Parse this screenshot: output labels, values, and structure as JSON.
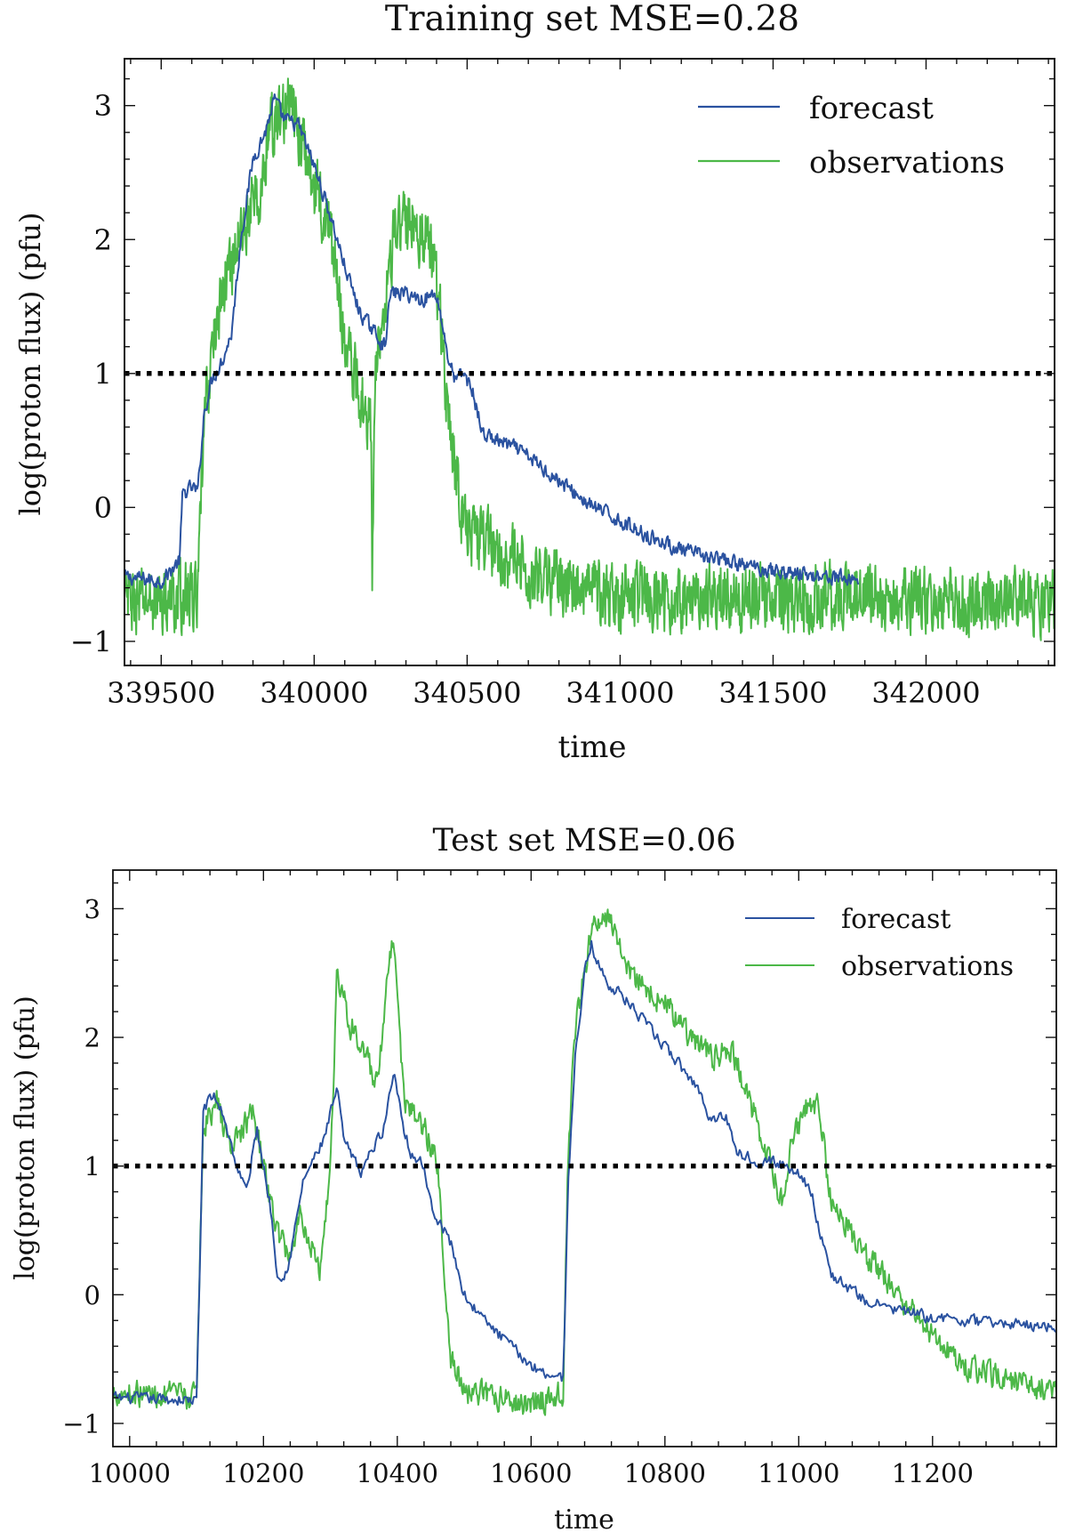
{
  "chart_data": [
    {
      "type": "line",
      "title": "Training set MSE=0.28",
      "xlabel": "time",
      "ylabel": "log(proton flux) (pfu)",
      "xlim": [
        339380,
        342420
      ],
      "ylim": [
        -1.18,
        3.35
      ],
      "xticks": [
        339500,
        340000,
        340500,
        341000,
        341500,
        342000
      ],
      "xtick_labels": [
        "339500",
        "340000",
        "340500",
        "341000",
        "341500",
        "342000"
      ],
      "yticks": [
        -1,
        0,
        1,
        2,
        3
      ],
      "ytick_labels": [
        "−1",
        "0",
        "1",
        "2",
        "3"
      ],
      "grid": false,
      "legend_position": "top-right",
      "threshold": {
        "y": 1,
        "style": "dotted",
        "color": "#000000"
      },
      "series": [
        {
          "name": "forecast",
          "color": "#2a52a0",
          "noise": 0.05,
          "keypoints": [
            [
              339380,
              -0.52
            ],
            [
              339500,
              -0.55
            ],
            [
              339560,
              -0.4
            ],
            [
              339570,
              0.1
            ],
            [
              339600,
              0.15
            ],
            [
              339620,
              0.12
            ],
            [
              339640,
              0.7
            ],
            [
              339665,
              0.95
            ],
            [
              339700,
              1.1
            ],
            [
              339730,
              1.3
            ],
            [
              339760,
              2.0
            ],
            [
              339800,
              2.6
            ],
            [
              339840,
              2.8
            ],
            [
              339870,
              3.05
            ],
            [
              339900,
              2.9
            ],
            [
              339950,
              2.85
            ],
            [
              340000,
              2.55
            ],
            [
              340050,
              2.2
            ],
            [
              340100,
              1.8
            ],
            [
              340150,
              1.45
            ],
            [
              340200,
              1.3
            ],
            [
              340230,
              1.2
            ],
            [
              340250,
              1.6
            ],
            [
              340300,
              1.6
            ],
            [
              340350,
              1.55
            ],
            [
              340400,
              1.6
            ],
            [
              340420,
              1.35
            ],
            [
              340440,
              1.1
            ],
            [
              340460,
              0.95
            ],
            [
              340490,
              1.0
            ],
            [
              340520,
              0.85
            ],
            [
              340550,
              0.55
            ],
            [
              340600,
              0.5
            ],
            [
              340650,
              0.45
            ],
            [
              340700,
              0.38
            ],
            [
              340800,
              0.2
            ],
            [
              340900,
              0.02
            ],
            [
              341000,
              -0.1
            ],
            [
              341100,
              -0.22
            ],
            [
              341200,
              -0.32
            ],
            [
              341300,
              -0.38
            ],
            [
              341400,
              -0.43
            ],
            [
              341500,
              -0.47
            ],
            [
              341600,
              -0.5
            ],
            [
              341700,
              -0.52
            ],
            [
              341780,
              -0.54
            ]
          ]
        },
        {
          "name": "observations",
          "color": "#4cb848",
          "noise": 0.22,
          "keypoints": [
            [
              339380,
              -0.7
            ],
            [
              339500,
              -0.7
            ],
            [
              339620,
              -0.65
            ],
            [
              339640,
              0.6
            ],
            [
              339660,
              1.05
            ],
            [
              339690,
              1.5
            ],
            [
              339730,
              1.85
            ],
            [
              339770,
              2.1
            ],
            [
              339800,
              2.25
            ],
            [
              339830,
              2.35
            ],
            [
              339850,
              2.8
            ],
            [
              339880,
              2.9
            ],
            [
              339920,
              3.0
            ],
            [
              339950,
              2.8
            ],
            [
              340000,
              2.4
            ],
            [
              340050,
              2.1
            ],
            [
              340080,
              1.6
            ],
            [
              340110,
              1.15
            ],
            [
              340150,
              0.85
            ],
            [
              340185,
              0.65
            ],
            [
              340190,
              -0.55
            ],
            [
              340200,
              1.05
            ],
            [
              340230,
              1.6
            ],
            [
              340260,
              2.0
            ],
            [
              340300,
              2.15
            ],
            [
              340340,
              2.1
            ],
            [
              340380,
              1.95
            ],
            [
              340410,
              1.5
            ],
            [
              340430,
              0.9
            ],
            [
              340450,
              0.5
            ],
            [
              340480,
              0.0
            ],
            [
              340520,
              -0.2
            ],
            [
              340600,
              -0.3
            ],
            [
              340700,
              -0.5
            ],
            [
              341000,
              -0.68
            ],
            [
              341500,
              -0.68
            ],
            [
              342000,
              -0.68
            ],
            [
              342420,
              -0.68
            ]
          ]
        }
      ]
    },
    {
      "type": "line",
      "title": "Test set MSE=0.06",
      "xlabel": "time",
      "ylabel": "log(proton flux) (pfu)",
      "xlim": [
        9975,
        11385
      ],
      "ylim": [
        -1.18,
        3.3
      ],
      "xticks": [
        10000,
        10200,
        10400,
        10600,
        10800,
        11000,
        11200
      ],
      "xtick_labels": [
        "10000",
        "10200",
        "10400",
        "10600",
        "10800",
        "11000",
        "11200"
      ],
      "yticks": [
        -1,
        0,
        1,
        2,
        3
      ],
      "ytick_labels": [
        "−1",
        "0",
        "1",
        "2",
        "3"
      ],
      "grid": false,
      "legend_position": "top-right",
      "threshold": {
        "y": 1,
        "style": "dotted",
        "color": "#000000"
      },
      "series": [
        {
          "name": "forecast",
          "color": "#2a52a0",
          "noise": 0.04,
          "keypoints": [
            [
              9975,
              -0.8
            ],
            [
              10100,
              -0.82
            ],
            [
              10105,
              0.2
            ],
            [
              10110,
              1.45
            ],
            [
              10125,
              1.55
            ],
            [
              10140,
              1.4
            ],
            [
              10160,
              1.0
            ],
            [
              10175,
              0.8
            ],
            [
              10190,
              1.3
            ],
            [
              10200,
              1.0
            ],
            [
              10210,
              0.7
            ],
            [
              10220,
              0.2
            ],
            [
              10230,
              0.12
            ],
            [
              10240,
              0.3
            ],
            [
              10260,
              0.9
            ],
            [
              10290,
              1.2
            ],
            [
              10310,
              1.6
            ],
            [
              10320,
              1.2
            ],
            [
              10335,
              1.05
            ],
            [
              10345,
              0.95
            ],
            [
              10360,
              1.1
            ],
            [
              10380,
              1.3
            ],
            [
              10395,
              1.75
            ],
            [
              10410,
              1.3
            ],
            [
              10420,
              1.1
            ],
            [
              10440,
              1.0
            ],
            [
              10450,
              0.7
            ],
            [
              10480,
              0.4
            ],
            [
              10500,
              0.0
            ],
            [
              10530,
              -0.2
            ],
            [
              10560,
              -0.35
            ],
            [
              10600,
              -0.55
            ],
            [
              10620,
              -0.6
            ],
            [
              10648,
              -0.65
            ],
            [
              10655,
              0.8
            ],
            [
              10665,
              1.8
            ],
            [
              10680,
              2.5
            ],
            [
              10690,
              2.72
            ],
            [
              10710,
              2.45
            ],
            [
              10740,
              2.3
            ],
            [
              10780,
              2.05
            ],
            [
              10820,
              1.8
            ],
            [
              10850,
              1.6
            ],
            [
              10870,
              1.35
            ],
            [
              10890,
              1.4
            ],
            [
              10910,
              1.1
            ],
            [
              10935,
              1.05
            ],
            [
              10950,
              1.05
            ],
            [
              10980,
              1.0
            ],
            [
              11000,
              0.95
            ],
            [
              11020,
              0.8
            ],
            [
              11030,
              0.5
            ],
            [
              11050,
              0.15
            ],
            [
              11100,
              -0.05
            ],
            [
              11150,
              -0.12
            ],
            [
              11200,
              -0.18
            ],
            [
              11250,
              -0.2
            ],
            [
              11300,
              -0.22
            ],
            [
              11385,
              -0.25
            ]
          ]
        },
        {
          "name": "observations",
          "color": "#4cb848",
          "noise": 0.09,
          "keypoints": [
            [
              9975,
              -0.75
            ],
            [
              10100,
              -0.8
            ],
            [
              10105,
              0.3
            ],
            [
              10110,
              1.3
            ],
            [
              10130,
              1.5
            ],
            [
              10150,
              1.15
            ],
            [
              10170,
              1.3
            ],
            [
              10185,
              1.4
            ],
            [
              10200,
              1.0
            ],
            [
              10220,
              0.5
            ],
            [
              10240,
              0.3
            ],
            [
              10255,
              0.65
            ],
            [
              10270,
              0.4
            ],
            [
              10285,
              0.2
            ],
            [
              10300,
              1.0
            ],
            [
              10310,
              2.5
            ],
            [
              10330,
              2.1
            ],
            [
              10350,
              1.9
            ],
            [
              10370,
              1.6
            ],
            [
              10385,
              2.4
            ],
            [
              10395,
              2.8
            ],
            [
              10410,
              1.5
            ],
            [
              10440,
              1.3
            ],
            [
              10460,
              1.0
            ],
            [
              10480,
              -0.5
            ],
            [
              10500,
              -0.75
            ],
            [
              10550,
              -0.8
            ],
            [
              10600,
              -0.85
            ],
            [
              10648,
              -0.75
            ],
            [
              10655,
              1.0
            ],
            [
              10665,
              2.0
            ],
            [
              10690,
              2.85
            ],
            [
              10720,
              2.9
            ],
            [
              10750,
              2.5
            ],
            [
              10780,
              2.35
            ],
            [
              10810,
              2.2
            ],
            [
              10840,
              2.0
            ],
            [
              10870,
              1.85
            ],
            [
              10900,
              1.9
            ],
            [
              10920,
              1.6
            ],
            [
              10940,
              1.3
            ],
            [
              10960,
              0.95
            ],
            [
              10975,
              0.7
            ],
            [
              10990,
              1.2
            ],
            [
              11010,
              1.45
            ],
            [
              11030,
              1.5
            ],
            [
              11045,
              0.8
            ],
            [
              11060,
              0.65
            ],
            [
              11100,
              0.3
            ],
            [
              11150,
              0.0
            ],
            [
              11200,
              -0.3
            ],
            [
              11250,
              -0.55
            ],
            [
              11300,
              -0.65
            ],
            [
              11385,
              -0.75
            ]
          ]
        }
      ]
    }
  ]
}
